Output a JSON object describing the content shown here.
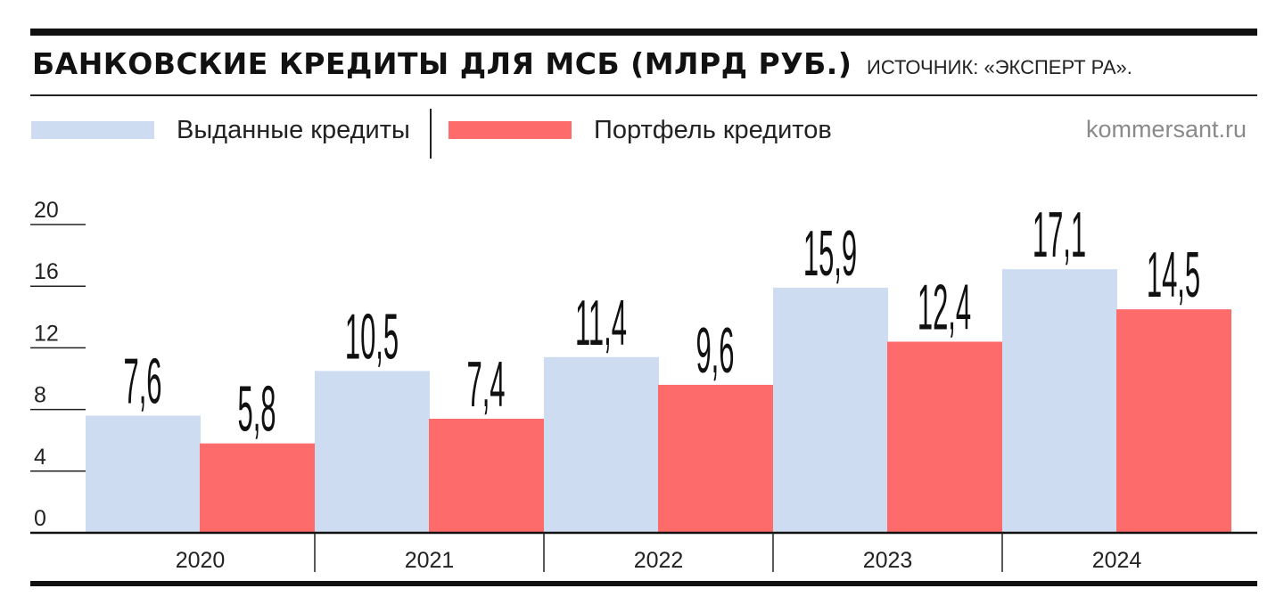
{
  "header": {
    "title": "БАНКОВСКИЕ КРЕДИТЫ ДЛЯ МСБ (МЛРД РУБ.)",
    "source": "ИСТОЧНИК: «ЭКСПЕРТ РА».",
    "site": "kommersant.ru"
  },
  "legend": {
    "issued": "Выданные кредиты",
    "portfolio": "Портфель кредитов"
  },
  "colors": {
    "issued": "#cddcf1",
    "portfolio": "#fe6b6b"
  },
  "chart_data": {
    "type": "bar",
    "title": "БАНКОВСКИЕ КРЕДИТЫ ДЛЯ МСБ (МЛРД РУБ.)",
    "categories": [
      "2020",
      "2021",
      "2022",
      "2023",
      "2024"
    ],
    "series": [
      {
        "name": "Выданные кредиты",
        "values": [
          7.6,
          10.5,
          11.4,
          15.9,
          17.1
        ],
        "labels": [
          "7,6",
          "10,5",
          "11,4",
          "15,9",
          "17,1"
        ]
      },
      {
        "name": "Портфель кредитов",
        "values": [
          5.8,
          7.4,
          9.6,
          12.4,
          14.5
        ],
        "labels": [
          "5,8",
          "7,4",
          "9,6",
          "12,4",
          "14,5"
        ]
      }
    ],
    "ylim": [
      0,
      20
    ],
    "yticks": [
      "0",
      "4",
      "8",
      "12",
      "16",
      "20"
    ],
    "legend_position": "top-left",
    "grid": false
  }
}
